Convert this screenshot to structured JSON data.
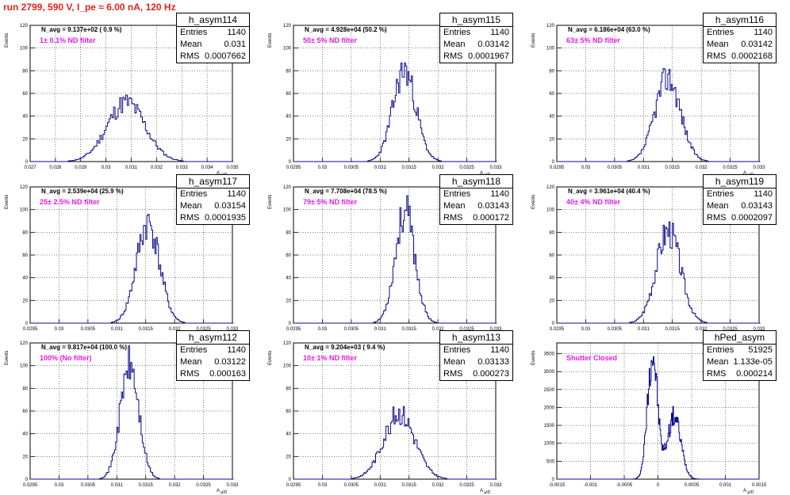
{
  "header": {
    "run_title": "run 2799,   590 V, I_pe ≈ 6.00 nA, 120 Hz"
  },
  "colors": {
    "histogram": "#0b0b8a",
    "title": "#e4231b",
    "filter_text": "#e41ce4"
  },
  "stat_labels": {
    "entries": "Entries",
    "mean": "Mean",
    "rms": "RMS"
  },
  "chart_data": [
    {
      "type": "bar",
      "name": "h_asym114",
      "entries": "1140",
      "mean": "0.031",
      "rms": "0.0007662",
      "navg": "N_avg = 9.137e+02 ( 0.9 %)",
      "filter": "1± 0.1% ND filter",
      "ylabel": "Events",
      "xlabel": "A_uID",
      "xlim": [
        0.027,
        0.035
      ],
      "ylim": [
        0,
        120
      ],
      "yticks": [
        {
          "v": 0,
          "l": "0"
        },
        {
          "v": 20,
          "l": "20"
        },
        {
          "v": 40,
          "l": "40"
        },
        {
          "v": 60,
          "l": "60"
        },
        {
          "v": 80,
          "l": "80"
        },
        {
          "v": 100,
          "l": "100"
        },
        {
          "v": 120,
          "l": "120"
        }
      ],
      "xticks": [
        {
          "v": 0.027,
          "l": "0.027"
        },
        {
          "v": 0.028,
          "l": "0.028"
        },
        {
          "v": 0.029,
          "l": "0.029"
        },
        {
          "v": 0.03,
          "l": "0.03"
        },
        {
          "v": 0.031,
          "l": "0.031"
        },
        {
          "v": 0.032,
          "l": "0.032"
        },
        {
          "v": 0.033,
          "l": "0.033"
        },
        {
          "v": 0.034,
          "l": "0.034"
        },
        {
          "v": 0.035,
          "l": "0.035"
        }
      ],
      "dist": {
        "mu": 0.0308,
        "sigma": 0.00075,
        "peak": 52,
        "binw": 6e-05,
        "seed": 11
      }
    },
    {
      "type": "bar",
      "name": "h_asym115",
      "entries": "1140",
      "mean": "0.03142",
      "rms": "0.0001967",
      "navg": "N_avg = 4.928e+04 (50.2 %)",
      "filter": "50± 5% ND filter",
      "ylabel": "Events",
      "xlabel": "A_uID",
      "xlim": [
        0.0295,
        0.033
      ],
      "ylim": [
        0,
        120
      ],
      "yticks": [
        {
          "v": 0,
          "l": "0"
        },
        {
          "v": 20,
          "l": "20"
        },
        {
          "v": 40,
          "l": "40"
        },
        {
          "v": 60,
          "l": "60"
        },
        {
          "v": 80,
          "l": "80"
        },
        {
          "v": 100,
          "l": "100"
        },
        {
          "v": 120,
          "l": "120"
        }
      ],
      "xticks": [
        {
          "v": 0.0295,
          "l": "0.0295"
        },
        {
          "v": 0.03,
          "l": "0.03"
        },
        {
          "v": 0.0305,
          "l": "0.0305"
        },
        {
          "v": 0.031,
          "l": "0.031"
        },
        {
          "v": 0.0315,
          "l": "0.0315"
        },
        {
          "v": 0.032,
          "l": "0.032"
        },
        {
          "v": 0.0325,
          "l": "0.0325"
        },
        {
          "v": 0.033,
          "l": "0.033"
        }
      ],
      "dist": {
        "mu": 0.03142,
        "sigma": 0.0002,
        "peak": 80,
        "binw": 2e-05,
        "seed": 23
      }
    },
    {
      "type": "bar",
      "name": "h_asym116",
      "entries": "1140",
      "mean": "0.03142",
      "rms": "0.0002168",
      "navg": "N_avg = 6.186e+04 (63.0 %)",
      "filter": "63± 5% ND filter",
      "ylabel": "Events",
      "xlabel": "A_uID",
      "xlim": [
        0.0295,
        0.033
      ],
      "ylim": [
        0,
        120
      ],
      "yticks": [
        {
          "v": 0,
          "l": "0"
        },
        {
          "v": 20,
          "l": "20"
        },
        {
          "v": 40,
          "l": "40"
        },
        {
          "v": 60,
          "l": "60"
        },
        {
          "v": 80,
          "l": "80"
        },
        {
          "v": 100,
          "l": "100"
        },
        {
          "v": 120,
          "l": "120"
        }
      ],
      "xticks": [
        {
          "v": 0.0295,
          "l": "0.0295"
        },
        {
          "v": 0.03,
          "l": "0.03"
        },
        {
          "v": 0.0305,
          "l": "0.0305"
        },
        {
          "v": 0.031,
          "l": "0.031"
        },
        {
          "v": 0.0315,
          "l": "0.0315"
        },
        {
          "v": 0.032,
          "l": "0.032"
        },
        {
          "v": 0.0325,
          "l": "0.0325"
        },
        {
          "v": 0.033,
          "l": "0.033"
        }
      ],
      "dist": {
        "mu": 0.03142,
        "sigma": 0.00022,
        "peak": 74,
        "binw": 2e-05,
        "seed": 37
      }
    },
    {
      "type": "bar",
      "name": "h_asym117",
      "entries": "1140",
      "mean": "0.03154",
      "rms": "0.0001935",
      "navg": "N_avg = 2.539e+04 (25.9 %)",
      "filter": "25± 2.5% ND filter",
      "ylabel": "Events",
      "xlabel": "A_uID",
      "xlim": [
        0.0295,
        0.033
      ],
      "ylim": [
        0,
        120
      ],
      "yticks": [
        {
          "v": 0,
          "l": "0"
        },
        {
          "v": 20,
          "l": "20"
        },
        {
          "v": 40,
          "l": "40"
        },
        {
          "v": 60,
          "l": "60"
        },
        {
          "v": 80,
          "l": "80"
        },
        {
          "v": 100,
          "l": "100"
        },
        {
          "v": 120,
          "l": "120"
        }
      ],
      "xticks": [
        {
          "v": 0.0295,
          "l": "0.0295"
        },
        {
          "v": 0.03,
          "l": "0.03"
        },
        {
          "v": 0.0305,
          "l": "0.0305"
        },
        {
          "v": 0.031,
          "l": "0.031"
        },
        {
          "v": 0.0315,
          "l": "0.0315"
        },
        {
          "v": 0.032,
          "l": "0.032"
        },
        {
          "v": 0.0325,
          "l": "0.0325"
        },
        {
          "v": 0.033,
          "l": "0.033"
        }
      ],
      "dist": {
        "mu": 0.03154,
        "sigma": 0.0002,
        "peak": 88,
        "binw": 2e-05,
        "seed": 41
      }
    },
    {
      "type": "bar",
      "name": "h_asym118",
      "entries": "1140",
      "mean": "0.03143",
      "rms": "0.000172",
      "navg": "N_avg = 7.708e+04 (78.5 %)",
      "filter": "79± 5% ND filter",
      "ylabel": "Events",
      "xlabel": "A_uID",
      "xlim": [
        0.0295,
        0.033
      ],
      "ylim": [
        0,
        120
      ],
      "yticks": [
        {
          "v": 0,
          "l": "0"
        },
        {
          "v": 20,
          "l": "20"
        },
        {
          "v": 40,
          "l": "40"
        },
        {
          "v": 60,
          "l": "60"
        },
        {
          "v": 80,
          "l": "80"
        },
        {
          "v": 100,
          "l": "100"
        },
        {
          "v": 120,
          "l": "120"
        }
      ],
      "xticks": [
        {
          "v": 0.0295,
          "l": "0.0295"
        },
        {
          "v": 0.03,
          "l": "0.03"
        },
        {
          "v": 0.0305,
          "l": "0.0305"
        },
        {
          "v": 0.031,
          "l": "0.031"
        },
        {
          "v": 0.0315,
          "l": "0.0315"
        },
        {
          "v": 0.032,
          "l": "0.032"
        },
        {
          "v": 0.0325,
          "l": "0.0325"
        },
        {
          "v": 0.033,
          "l": "0.033"
        }
      ],
      "dist": {
        "mu": 0.03143,
        "sigma": 0.00017,
        "peak": 98,
        "binw": 2e-05,
        "seed": 53
      }
    },
    {
      "type": "bar",
      "name": "h_asym119",
      "entries": "1140",
      "mean": "0.03143",
      "rms": "0.0002097",
      "navg": "N_avg = 3.961e+04 (40.4 %)",
      "filter": "40± 4% ND filter",
      "ylabel": "Events",
      "xlabel": "A_uID",
      "xlim": [
        0.0295,
        0.033
      ],
      "ylim": [
        0,
        120
      ],
      "yticks": [
        {
          "v": 0,
          "l": "0"
        },
        {
          "v": 20,
          "l": "20"
        },
        {
          "v": 40,
          "l": "40"
        },
        {
          "v": 60,
          "l": "60"
        },
        {
          "v": 80,
          "l": "80"
        },
        {
          "v": 100,
          "l": "100"
        },
        {
          "v": 120,
          "l": "120"
        }
      ],
      "xticks": [
        {
          "v": 0.0295,
          "l": "0.0295"
        },
        {
          "v": 0.03,
          "l": "0.03"
        },
        {
          "v": 0.0305,
          "l": "0.0305"
        },
        {
          "v": 0.031,
          "l": "0.031"
        },
        {
          "v": 0.0315,
          "l": "0.0315"
        },
        {
          "v": 0.032,
          "l": "0.032"
        },
        {
          "v": 0.0325,
          "l": "0.0325"
        },
        {
          "v": 0.033,
          "l": "0.033"
        }
      ],
      "dist": {
        "mu": 0.03143,
        "sigma": 0.00021,
        "peak": 82,
        "binw": 2e-05,
        "seed": 67
      }
    },
    {
      "type": "bar",
      "name": "h_asym112",
      "entries": "1140",
      "mean": "0.03122",
      "rms": "0.000163",
      "navg": "N_avg = 9.817e+04 (100.0 %)",
      "filter": "100% (No filter)",
      "ylabel": "Events",
      "xlabel": "A_uID",
      "xlim": [
        0.0295,
        0.033
      ],
      "ylim": [
        0,
        120
      ],
      "yticks": [
        {
          "v": 0,
          "l": "0"
        },
        {
          "v": 20,
          "l": "20"
        },
        {
          "v": 40,
          "l": "40"
        },
        {
          "v": 60,
          "l": "60"
        },
        {
          "v": 80,
          "l": "80"
        },
        {
          "v": 100,
          "l": "100"
        },
        {
          "v": 120,
          "l": "120"
        }
      ],
      "xticks": [
        {
          "v": 0.0295,
          "l": "0.0295"
        },
        {
          "v": 0.03,
          "l": "0.03"
        },
        {
          "v": 0.0305,
          "l": "0.0305"
        },
        {
          "v": 0.031,
          "l": "0.031"
        },
        {
          "v": 0.0315,
          "l": "0.0315"
        },
        {
          "v": 0.032,
          "l": "0.032"
        },
        {
          "v": 0.0325,
          "l": "0.0325"
        },
        {
          "v": 0.033,
          "l": "0.033"
        }
      ],
      "dist": {
        "mu": 0.03122,
        "sigma": 0.00016,
        "peak": 100,
        "binw": 2e-05,
        "seed": 71
      }
    },
    {
      "type": "bar",
      "name": "h_asym113",
      "entries": "1140",
      "mean": "0.03133",
      "rms": "0.000273",
      "navg": "N_avg = 9.204e+03 ( 9.4 %)",
      "filter": "10± 1% ND filter",
      "ylabel": "Events",
      "xlabel": "A_uID",
      "xlim": [
        0.0295,
        0.033
      ],
      "ylim": [
        0,
        120
      ],
      "yticks": [
        {
          "v": 0,
          "l": "0"
        },
        {
          "v": 20,
          "l": "20"
        },
        {
          "v": 40,
          "l": "40"
        },
        {
          "v": 60,
          "l": "60"
        },
        {
          "v": 80,
          "l": "80"
        },
        {
          "v": 100,
          "l": "100"
        },
        {
          "v": 120,
          "l": "120"
        }
      ],
      "xticks": [
        {
          "v": 0.0295,
          "l": "0.0295"
        },
        {
          "v": 0.03,
          "l": "0.03"
        },
        {
          "v": 0.0305,
          "l": "0.0305"
        },
        {
          "v": 0.031,
          "l": "0.031"
        },
        {
          "v": 0.0315,
          "l": "0.0315"
        },
        {
          "v": 0.032,
          "l": "0.032"
        },
        {
          "v": 0.0325,
          "l": "0.0325"
        },
        {
          "v": 0.033,
          "l": "0.033"
        }
      ],
      "dist": {
        "mu": 0.03133,
        "sigma": 0.00027,
        "peak": 58,
        "binw": 2e-05,
        "seed": 83
      }
    },
    {
      "type": "bar",
      "name": "hPed_asym",
      "entries": "51925",
      "mean": "1.133e-05",
      "rms": "0.000214",
      "navg": "",
      "filter": "Shutter Closed",
      "ylabel": "Events",
      "xlabel": "A_uID",
      "xlim": [
        -0.0015,
        0.0015
      ],
      "ylim": [
        0,
        3800
      ],
      "yticks": [
        {
          "v": 0,
          "l": "0"
        },
        {
          "v": 500,
          "l": "500"
        },
        {
          "v": 1000,
          "l": "1000"
        },
        {
          "v": 1500,
          "l": "1500"
        },
        {
          "v": 2000,
          "l": "2000"
        },
        {
          "v": 2500,
          "l": "2500"
        },
        {
          "v": 3000,
          "l": "3000"
        },
        {
          "v": 3500,
          "l": "3500"
        }
      ],
      "xticks": [
        {
          "v": -0.0015,
          "l": "-0.0015"
        },
        {
          "v": -0.001,
          "l": "-0.001"
        },
        {
          "v": -0.0005,
          "l": "-0.0005"
        },
        {
          "v": 0,
          "l": "0"
        },
        {
          "v": 0.0005,
          "l": "0.0005"
        },
        {
          "v": 0.001,
          "l": "0.001"
        },
        {
          "v": 0.0015,
          "l": "0.0015"
        }
      ],
      "dist": {
        "bimodal": true,
        "mu": -8e-05,
        "sigma": 7.5e-05,
        "peak": 3500,
        "mu2": 0.00024,
        "sigma2": 0.0001,
        "peak2": 1750,
        "binw": 1e-05,
        "seed": 97
      }
    }
  ]
}
